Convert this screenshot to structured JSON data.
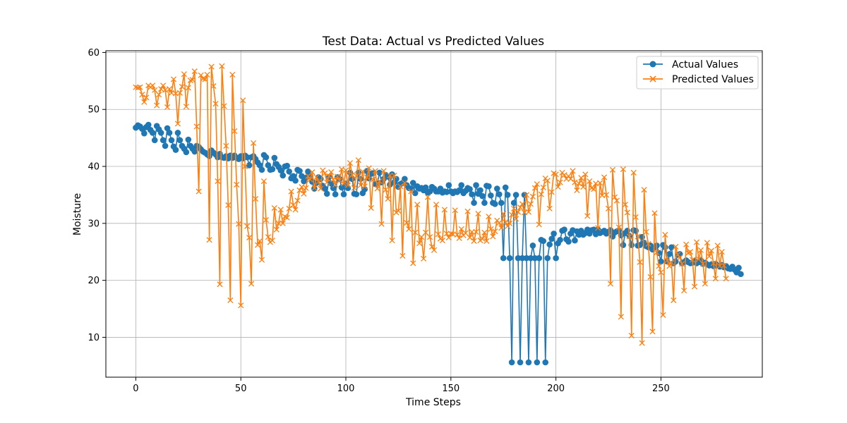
{
  "chart_data": {
    "type": "line",
    "title": "Test Data: Actual vs Predicted Values",
    "xlabel": "Time Steps",
    "ylabel": "Moisture",
    "xlim": [
      -14.25,
      298.25
    ],
    "ylim": [
      3.0,
      60.3
    ],
    "xticks": [
      0,
      50,
      100,
      150,
      200,
      250
    ],
    "yticks": [
      10,
      20,
      30,
      40,
      50,
      60
    ],
    "grid": true,
    "legend_position": "top-right",
    "series": [
      {
        "name": "Actual Values",
        "color": "#1f77b4",
        "marker": "circle",
        "values": [
          46.8,
          47.2,
          47.0,
          46.6,
          45.8,
          46.9,
          47.3,
          46.4,
          45.9,
          44.6,
          47.1,
          46.5,
          45.9,
          44.6,
          43.6,
          46.7,
          45.9,
          44.6,
          43.5,
          42.9,
          45.9,
          44.6,
          43.6,
          43.1,
          42.5,
          44.7,
          43.6,
          43.1,
          42.6,
          43.6,
          43.4,
          43.0,
          42.6,
          42.4,
          42.1,
          41.8,
          42.8,
          42.4,
          42.1,
          41.6,
          42.2,
          41.6,
          41.5,
          41.8,
          41.4,
          41.9,
          41.5,
          41.9,
          41.5,
          41.3,
          41.8,
          41.4,
          41.9,
          41.6,
          40.2,
          41.6,
          41.8,
          41.3,
          40.7,
          40.2,
          39.4,
          42.0,
          41.6,
          40.2,
          39.4,
          39.5,
          41.5,
          40.4,
          39.9,
          39.3,
          38.4,
          40.0,
          40.1,
          39.1,
          37.9,
          38.3,
          37.5,
          39.4,
          39.2,
          38.3,
          37.4,
          38.0,
          39.1,
          38.2,
          37.3,
          36.1,
          37.1,
          38.1,
          37.8,
          36.6,
          36.1,
          35.2,
          38.1,
          37.0,
          36.2,
          35.1,
          38.1,
          37.8,
          36.3,
          35.1,
          37.0,
          36.2,
          38.9,
          37.8,
          35.2,
          35.1,
          38.9,
          37.8,
          35.3,
          36.0,
          39.2,
          37.9,
          38.7,
          38.8,
          36.9,
          37.0,
          38.9,
          37.2,
          37.8,
          38.5,
          38.2,
          36.8,
          38.6,
          37.2,
          37.8,
          36.4,
          36.9,
          37.1,
          37.8,
          36.7,
          36.2,
          36.1,
          37.1,
          35.3,
          36.5,
          36.1,
          36.2,
          35.8,
          36.3,
          35.4,
          35.6,
          36.4,
          36.1,
          35.6,
          35.6,
          36.1,
          35.4,
          35.6,
          35.5,
          36.7,
          35.6,
          35.3,
          35.6,
          35.5,
          35.8,
          36.7,
          35.3,
          35.7,
          36.2,
          36.0,
          35.1,
          33.6,
          36.7,
          35.2,
          35.8,
          34.8,
          33.6,
          36.6,
          36.5,
          34.9,
          33.6,
          33.4,
          36.1,
          35.1,
          33.6,
          23.9,
          36.3,
          35.0,
          23.9,
          5.6,
          33.6,
          35.0,
          23.9,
          5.6,
          23.9,
          35.0,
          23.9,
          5.6,
          23.9,
          26.1,
          23.9,
          5.6,
          23.9,
          27.1,
          26.9,
          5.6,
          23.9,
          26.3,
          27.3,
          28.2,
          23.9,
          26.5,
          27.1,
          28.7,
          28.9,
          27.2,
          26.8,
          28.2,
          28.8,
          27.0,
          28.6,
          28.0,
          28.7,
          28.0,
          28.3,
          28.9,
          28.2,
          28.8,
          28.9,
          28.1,
          28.9,
          28.3,
          28.5,
          28.7,
          28.2,
          28.5,
          28.8,
          27.7,
          28.4,
          28.6,
          28.8,
          27.9,
          26.2,
          28.3,
          28.7,
          27.8,
          26.2,
          28.8,
          28.7,
          26.1,
          26.2,
          27.6,
          26.6,
          26.0,
          25.8,
          26.1,
          25.4,
          25.8,
          26.1,
          24.8,
          23.3,
          26.2,
          25.8,
          23.3,
          24.6,
          25.8,
          23.0,
          23.3,
          24.5,
          24.6,
          23.0,
          23.2,
          23.5,
          23.2,
          23.0,
          23.1,
          23.4,
          23.0,
          23.2,
          23.5,
          22.9,
          23.1,
          22.8,
          22.6,
          22.8,
          22.5,
          22.9,
          22.6,
          22.4,
          22.7,
          22.3,
          22.5,
          22.1,
          22.0,
          22.4,
          21.9,
          21.4,
          22.2,
          21.1
        ]
      },
      {
        "name": "Predicted Values",
        "color": "#ff7f0e",
        "marker": "x",
        "values": [
          53.9,
          53.8,
          53.9,
          52.6,
          51.3,
          52.1,
          54.2,
          53.9,
          54.2,
          53.4,
          50.7,
          52.6,
          53.6,
          54.2,
          53.4,
          50.4,
          53.6,
          52.9,
          55.3,
          52.8,
          47.5,
          52.9,
          54.0,
          56.2,
          50.5,
          53.8,
          55.1,
          55.2,
          56.7,
          47.0,
          35.6,
          56.0,
          55.4,
          55.3,
          56.1,
          27.1,
          57.5,
          54.1,
          51.0,
          37.4,
          19.3,
          57.6,
          50.6,
          43.6,
          33.2,
          16.5,
          56.1,
          46.2,
          36.8,
          29.9,
          15.6,
          51.6,
          40.0,
          29.5,
          27.5,
          19.4,
          44.1,
          34.3,
          26.2,
          26.9,
          23.6,
          37.4,
          30.6,
          27.6,
          26.7,
          27.0,
          32.7,
          28.9,
          30.0,
          32.4,
          30.0,
          31.2,
          31.0,
          32.6,
          35.6,
          33.2,
          32.4,
          34.0,
          35.8,
          36.4,
          35.2,
          36.2,
          38.3,
          37.7,
          39.0,
          36.2,
          38.1,
          37.3,
          36.1,
          39.3,
          38.8,
          37.2,
          38.3,
          39.0,
          37.7,
          36.8,
          38.2,
          37.5,
          39.5,
          37.0,
          39.3,
          36.7,
          40.6,
          38.5,
          36.2,
          38.3,
          41.1,
          36.7,
          39.1,
          36.5,
          38.1,
          39.7,
          32.7,
          37.7,
          39.2,
          36.1,
          37.4,
          29.9,
          39.2,
          35.9,
          34.3,
          38.4,
          27.0,
          38.4,
          31.9,
          32.2,
          36.5,
          24.3,
          37.1,
          30.1,
          29.0,
          35.6,
          23.0,
          28.4,
          33.3,
          26.5,
          27.6,
          23.8,
          28.4,
          34.6,
          27.6,
          25.9,
          25.3,
          33.3,
          28.1,
          27.3,
          27.0,
          32.4,
          28.2,
          27.5,
          28.2,
          28.1,
          32.3,
          28.0,
          27.4,
          29.0,
          27.9,
          28.3,
          32.1,
          27.5,
          28.5,
          26.9,
          28.5,
          31.7,
          27.0,
          27.3,
          28.4,
          26.9,
          31.2,
          29.0,
          27.7,
          28.6,
          30.5,
          30.1,
          29.2,
          31.7,
          30.2,
          29.5,
          30.0,
          31.5,
          32.6,
          30.8,
          32.0,
          32.8,
          33.4,
          31.9,
          35.0,
          32.0,
          33.4,
          34.7,
          36.2,
          36.9,
          29.8,
          35.1,
          36.3,
          37.9,
          37.5,
          32.6,
          35.5,
          38.8,
          38.6,
          36.4,
          37.2,
          38.9,
          38.5,
          37.8,
          38.3,
          37.8,
          39.2,
          37.2,
          35.8,
          37.0,
          38.0,
          36.4,
          38.6,
          31.3,
          37.4,
          36.2,
          36.0,
          37.0,
          29.2,
          37.1,
          34.9,
          38.1,
          35.0,
          32.6,
          19.4,
          39.4,
          34.6,
          34.0,
          29.3,
          13.6,
          39.5,
          33.3,
          31.9,
          27.7,
          10.3,
          38.9,
          31.1,
          27.7,
          23.2,
          9.0,
          35.9,
          28.5,
          26.4,
          20.6,
          11.0,
          31.8,
          24.9,
          22.5,
          21.4,
          13.9,
          28.0,
          23.5,
          22.5,
          23.1,
          16.5,
          25.9,
          24.5,
          24.0,
          22.9,
          18.2,
          26.3,
          24.8,
          25.0,
          23.6,
          18.9,
          26.7,
          23.7,
          25.3,
          22.9,
          19.4,
          26.6,
          24.2,
          25.2,
          23.0,
          20.3,
          26.1,
          22.5,
          25.0,
          22.6,
          20.3
        ]
      }
    ]
  }
}
